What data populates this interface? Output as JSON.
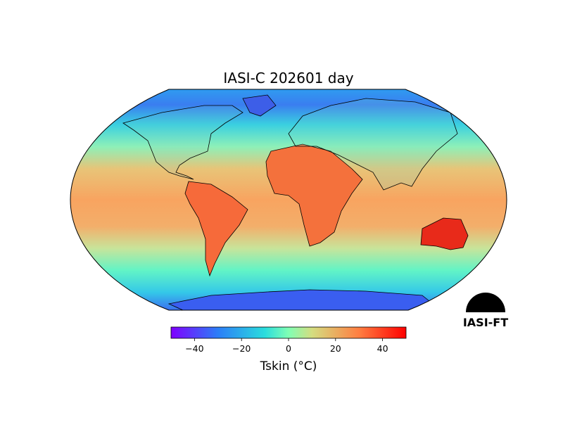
{
  "chart_data": {
    "type": "map",
    "title": "IASI-C 202601 day",
    "colorbar_label": "Tskin (°C)",
    "clim": [
      -50,
      50
    ],
    "cticks": [
      {
        "value": -40,
        "label": "−40"
      },
      {
        "value": -20,
        "label": "−20"
      },
      0,
      20,
      40
    ],
    "logo": "IASI-FT"
  }
}
